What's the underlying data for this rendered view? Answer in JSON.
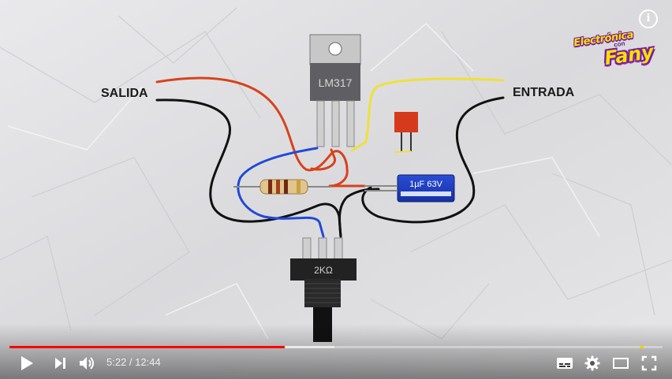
{
  "video": {
    "labels": {
      "output": "SALIDA",
      "input": "ENTRADA",
      "regulator": "LM317",
      "capacitor": "1µF 63V",
      "potentiometer": "2KΩ"
    },
    "logo": {
      "line1": "Electrónica",
      "line2": "con",
      "line3": "Fany"
    },
    "info_icon": "i"
  },
  "player": {
    "time": {
      "current": "5:22",
      "separator": " / ",
      "duration": "12:44"
    },
    "progress": {
      "played_fraction": 0.421,
      "loaded_fraction": 0.497,
      "ad_marker_fraction": 0.965
    },
    "colors": {
      "played": "#ff0000",
      "ad_marker": "#ffcc00"
    },
    "icons": [
      "play-icon",
      "next-icon",
      "volume-icon",
      "subtitles-icon",
      "settings-icon",
      "theater-icon",
      "fullscreen-icon"
    ]
  }
}
